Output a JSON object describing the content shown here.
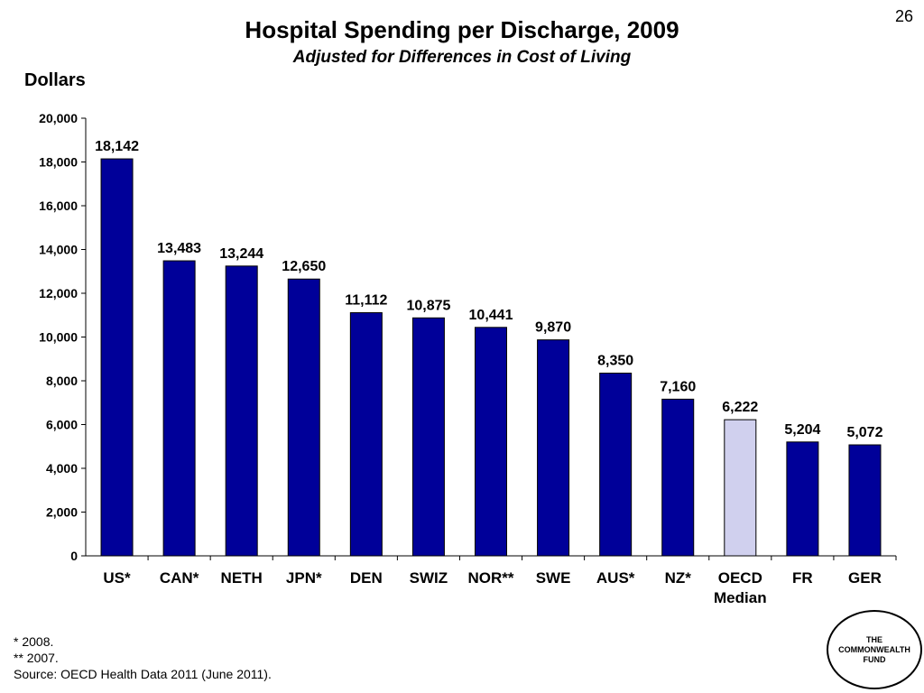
{
  "slide_number": "26",
  "colors": {
    "bar": "#000099",
    "highlight_bar": "#d0d0ee"
  },
  "footnotes": {
    "note1": "* 2008.",
    "note2": "** 2007.",
    "source": "Source: OECD Health Data 2011 (June 2011)."
  },
  "logo": {
    "text": "THE COMMONWEALTH FUND"
  },
  "chart_data": {
    "type": "bar",
    "title": "Hospital Spending per Discharge, 2009",
    "subtitle": "Adjusted for Differences in Cost of Living",
    "ylabel": "Dollars",
    "ylim": [
      0,
      20000
    ],
    "y_ticks": [
      "0",
      "2,000",
      "4,000",
      "6,000",
      "8,000",
      "10,000",
      "12,000",
      "14,000",
      "16,000",
      "18,000",
      "20,000"
    ],
    "grid": false,
    "categories": [
      "US*",
      "CAN*",
      "NETH",
      "JPN*",
      "DEN",
      "SWIZ",
      "NOR**",
      "SWE",
      "AUS*",
      "NZ*",
      "OECD Median",
      "FR",
      "GER"
    ],
    "values": [
      18142,
      13483,
      13244,
      12650,
      11112,
      10875,
      10441,
      9870,
      8350,
      7160,
      6222,
      5204,
      5072
    ],
    "value_labels": [
      "18,142",
      "13,483",
      "13,244",
      "12,650",
      "11,112",
      "10,875",
      "10,441",
      "9,870",
      "8,350",
      "7,160",
      "6,222",
      "5,204",
      "5,072"
    ],
    "highlight_category": "OECD Median"
  }
}
